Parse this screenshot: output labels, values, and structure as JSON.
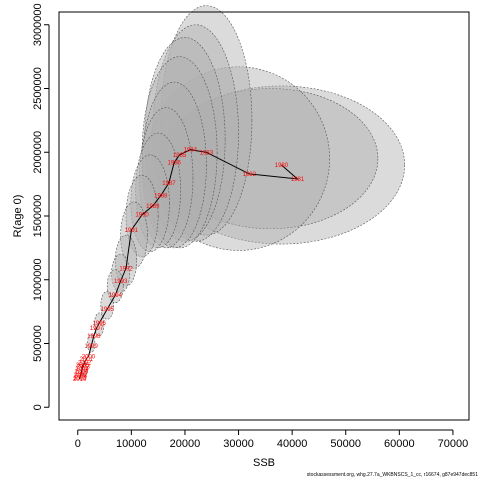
{
  "chart_data": {
    "type": "scatter",
    "title": "",
    "xlabel": "SSB",
    "ylabel": "R(age 0)",
    "xlim": [
      -3500,
      73000
    ],
    "ylim": [
      -100000,
      3100000
    ],
    "x_ticks": [
      0,
      10000,
      20000,
      30000,
      40000,
      50000,
      60000,
      70000
    ],
    "x_tick_labels": [
      "0",
      "10000",
      "20000",
      "30000",
      "40000",
      "50000",
      "60000",
      "70000"
    ],
    "y_ticks": [
      0,
      500000,
      1000000,
      1500000,
      2000000,
      2500000,
      3000000
    ],
    "y_tick_labels": [
      "0",
      "500000",
      "1000000",
      "1500000",
      "2000000",
      "2500000",
      "3000000"
    ],
    "grid": false,
    "legend": "none",
    "series": [
      {
        "values": [
          {
            "label": "1980",
            "x": 38000,
            "y": 1900000
          },
          {
            "label": "1981",
            "x": 41000,
            "y": 1790000
          },
          {
            "label": "1982",
            "x": 32000,
            "y": 1830000
          },
          {
            "label": "1983",
            "x": 24000,
            "y": 2000000
          },
          {
            "label": "1984",
            "x": 21000,
            "y": 2020000
          },
          {
            "label": "1985",
            "x": 19000,
            "y": 1980000
          },
          {
            "label": "1986",
            "x": 18000,
            "y": 1920000
          },
          {
            "label": "1987",
            "x": 17000,
            "y": 1760000
          },
          {
            "label": "1988",
            "x": 15500,
            "y": 1660000
          },
          {
            "label": "1989",
            "x": 14000,
            "y": 1580000
          },
          {
            "label": "1990",
            "x": 12000,
            "y": 1510000
          },
          {
            "label": "1991",
            "x": 10000,
            "y": 1390000
          },
          {
            "label": "1992",
            "x": 9000,
            "y": 1090000
          },
          {
            "label": "1993",
            "x": 8000,
            "y": 990000
          },
          {
            "label": "1994",
            "x": 7000,
            "y": 880000
          },
          {
            "label": "1995",
            "x": 5500,
            "y": 770000
          },
          {
            "label": "1996",
            "x": 4000,
            "y": 660000
          },
          {
            "label": "1997",
            "x": 3500,
            "y": 620000
          },
          {
            "label": "1998",
            "x": 3000,
            "y": 560000
          },
          {
            "label": "1999",
            "x": 2500,
            "y": 480000
          },
          {
            "label": "2000",
            "x": 2000,
            "y": 400000
          },
          {
            "label": "2001",
            "x": 1600,
            "y": 380000
          },
          {
            "label": "2002",
            "x": 1300,
            "y": 350000
          },
          {
            "label": "2003",
            "x": 1000,
            "y": 320000
          },
          {
            "label": "2004",
            "x": 800,
            "y": 300000
          },
          {
            "label": "2005",
            "x": 900,
            "y": 330000
          },
          {
            "label": "2006",
            "x": 700,
            "y": 280000
          },
          {
            "label": "2007",
            "x": 600,
            "y": 260000
          },
          {
            "label": "2008",
            "x": 500,
            "y": 250000
          },
          {
            "label": "2009",
            "x": 400,
            "y": 230000
          },
          {
            "label": "2010",
            "x": 350,
            "y": 220000
          }
        ],
        "line_color": "#000000",
        "label_color": "#ff0000"
      }
    ],
    "uncertainty_ellipses": [
      {
        "cx": 38000,
        "cy": 1900000,
        "rx": 23000,
        "ry": 620000,
        "fill": "#b0b0b0",
        "opacity": 0.45
      },
      {
        "cx": 36000,
        "cy": 1950000,
        "rx": 20000,
        "ry": 550000,
        "fill": "#b0b0b0",
        "opacity": 0.45
      },
      {
        "cx": 30000,
        "cy": 1950000,
        "rx": 17000,
        "ry": 720000,
        "fill": "#b0b0b0",
        "opacity": 0.45
      },
      {
        "cx": 24000,
        "cy": 2250000,
        "rx": 8500,
        "ry": 900000,
        "fill": "#b0b0b0",
        "opacity": 0.45
      },
      {
        "cx": 22000,
        "cy": 2150000,
        "rx": 8000,
        "ry": 850000,
        "fill": "#b0b0b0",
        "opacity": 0.45
      },
      {
        "cx": 20000,
        "cy": 2100000,
        "rx": 7500,
        "ry": 800000,
        "fill": "#b0b0b0",
        "opacity": 0.45
      },
      {
        "cx": 19000,
        "cy": 2000000,
        "rx": 7000,
        "ry": 750000,
        "fill": "#b0b0b0",
        "opacity": 0.45
      },
      {
        "cx": 18000,
        "cy": 1900000,
        "rx": 6000,
        "ry": 650000,
        "fill": "#b0b0b0",
        "opacity": 0.45
      },
      {
        "cx": 16500,
        "cy": 1800000,
        "rx": 5000,
        "ry": 550000,
        "fill": "#b0b0b0",
        "opacity": 0.45
      },
      {
        "cx": 15000,
        "cy": 1700000,
        "rx": 4200,
        "ry": 450000,
        "fill": "#b0b0b0",
        "opacity": 0.45
      },
      {
        "cx": 13500,
        "cy": 1600000,
        "rx": 3600,
        "ry": 380000,
        "fill": "#b0b0b0",
        "opacity": 0.45
      },
      {
        "cx": 12000,
        "cy": 1500000,
        "rx": 3000,
        "ry": 320000,
        "fill": "#b0b0b0",
        "opacity": 0.45
      },
      {
        "cx": 10500,
        "cy": 1350000,
        "rx": 2500,
        "ry": 260000,
        "fill": "#b0b0b0",
        "opacity": 0.45
      },
      {
        "cx": 9000,
        "cy": 1150000,
        "rx": 2000,
        "ry": 200000,
        "fill": "#b0b0b0",
        "opacity": 0.45
      },
      {
        "cx": 8000,
        "cy": 1050000,
        "rx": 1700,
        "ry": 150000,
        "fill": "#b0b0b0",
        "opacity": 0.45
      },
      {
        "cx": 7000,
        "cy": 950000,
        "rx": 1500,
        "ry": 130000,
        "fill": "#b0b0b0",
        "opacity": 0.45
      },
      {
        "cx": 5500,
        "cy": 800000,
        "rx": 1200,
        "ry": 110000,
        "fill": "#b0b0b0",
        "opacity": 0.45
      },
      {
        "cx": 4000,
        "cy": 650000,
        "rx": 900,
        "ry": 90000,
        "fill": "#b0b0b0",
        "opacity": 0.45
      },
      {
        "cx": 2500,
        "cy": 500000,
        "rx": 700,
        "ry": 70000,
        "fill": "#b0b0b0",
        "opacity": 0.45
      },
      {
        "cx": 1200,
        "cy": 300000,
        "rx": 500,
        "ry": 60000,
        "fill": "#b0b0b0",
        "opacity": 0.45
      }
    ]
  },
  "source_note": "stockassessment.org, whg.27.7a_WKBNSCS_1_cc, r16674, g87e947dec851"
}
